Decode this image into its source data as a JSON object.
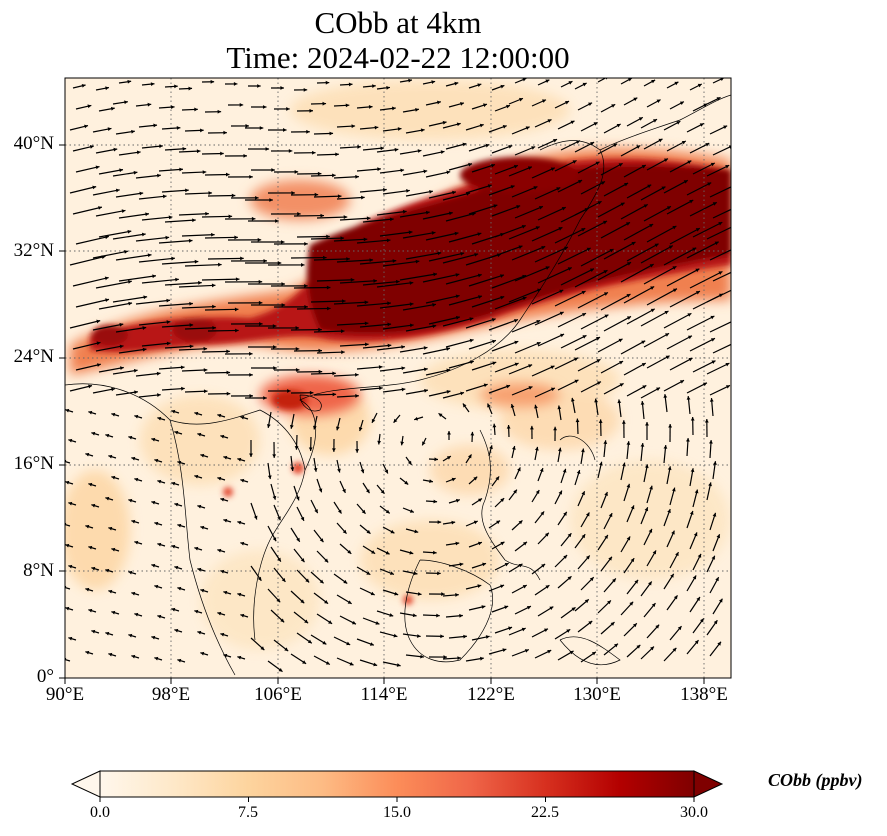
{
  "title": {
    "line1": "CObb at 4km",
    "line2": "Time: 2024-02-22 12:00:00"
  },
  "map": {
    "variable": "CObb",
    "altitude": "4km",
    "extent": {
      "lon": [
        90,
        140
      ],
      "lat": [
        0,
        45
      ]
    },
    "lon_ticks": [
      {
        "value": 90,
        "label": "90°E"
      },
      {
        "value": 98,
        "label": "98°E"
      },
      {
        "value": 106,
        "label": "106°E"
      },
      {
        "value": 114,
        "label": "114°E"
      },
      {
        "value": 122,
        "label": "122°E"
      },
      {
        "value": 130,
        "label": "130°E"
      },
      {
        "value": 138,
        "label": "138°E"
      }
    ],
    "lat_ticks": [
      {
        "value": 40,
        "label": "40°N"
      },
      {
        "value": 32,
        "label": "32°N"
      },
      {
        "value": 24,
        "label": "24°N"
      },
      {
        "value": 16,
        "label": "16°N"
      },
      {
        "value": 8,
        "label": "8°N"
      },
      {
        "value": 0,
        "label": "0°"
      }
    ],
    "gridlines": true,
    "wind_vectors": true,
    "coastlines": true
  },
  "colorbar": {
    "label": "CObb (ppbv)",
    "min": 0.0,
    "max": 30.0,
    "extend": "both",
    "colormap": "OrRd",
    "ticks": [
      "0.0",
      "7.5",
      "15.0",
      "22.5",
      "30.0"
    ],
    "colors": [
      "#fff7ec",
      "#fee8c8",
      "#fdd49e",
      "#fdbb84",
      "#fc8d59",
      "#ef6548",
      "#d7301f",
      "#b30000",
      "#7f0000"
    ]
  }
}
